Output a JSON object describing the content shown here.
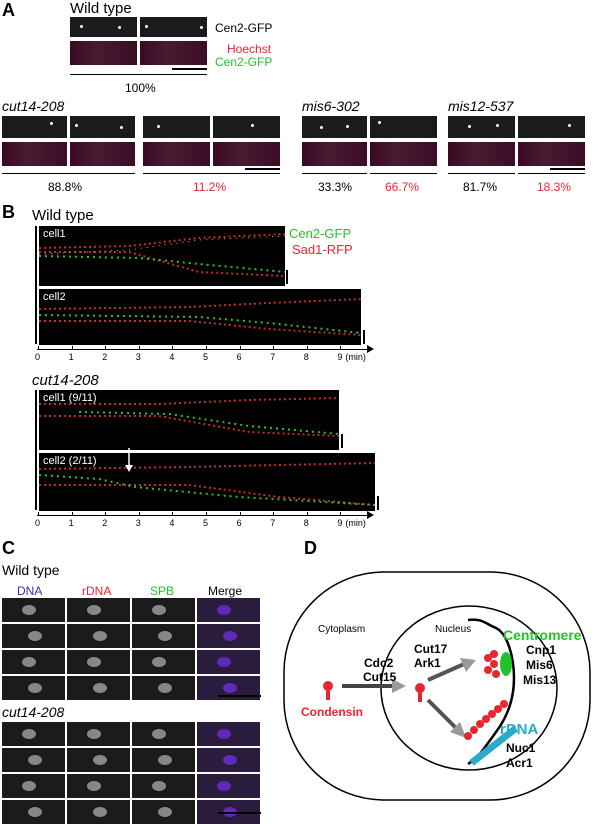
{
  "panelA": {
    "label": "A",
    "wild_type": "Wild type",
    "cen2_gfp": "Cen2-GFP",
    "hoechst": "Hoechst",
    "cen2_gfp2": "Cen2-GFP",
    "wt_pct": "100%",
    "cut14_name": "cut14-208",
    "cut14_pct1": "88.8%",
    "cut14_pct2": "11.2%",
    "mis6_name": "mis6-302",
    "mis6_pct1": "33.3%",
    "mis6_pct2": "66.7%",
    "mis12_name": "mis12-537",
    "mis12_pct1": "81.7%",
    "mis12_pct2": "18.3%"
  },
  "panelB": {
    "label": "B",
    "wild_type": "Wild type",
    "cen2_gfp": "Cen2-GFP",
    "sad1_rfp": "Sad1-RFP",
    "wt_cell1": "cell1",
    "wt_cell2": "cell2",
    "ticks": [
      "0",
      "1",
      "2",
      "3",
      "4",
      "5",
      "6",
      "7",
      "8",
      "9"
    ],
    "unit": "(min)",
    "cut14_name": "cut14-208",
    "cut_cell1": "cell1 (9/11)",
    "cut_cell2": "cell2 (2/11)"
  },
  "panelC": {
    "label": "C",
    "wild_type": "Wild type",
    "col_dna": "DNA",
    "col_rdna": "rDNA",
    "col_spb": "SPB",
    "col_merge": "Merge",
    "cut14_name": "cut14-208"
  },
  "panelD": {
    "label": "D",
    "cytoplasm": "Cytoplasm",
    "nucleus": "Nucleus",
    "centromere": "Centromere",
    "cen_proteins": [
      "Cnp1",
      "Mis6",
      "Mis13"
    ],
    "kinases1": [
      "Cdc2",
      "Cut15"
    ],
    "kinases2": [
      "Cut17",
      "Ark1"
    ],
    "condensin": "Condensin",
    "rdna": "rDNA",
    "rdna_proteins": [
      "Nuc1",
      "Acr1"
    ]
  },
  "colors": {
    "red": "#e8262e",
    "green": "#22c32a",
    "blue": "#2a35b8",
    "cyan": "#2aa9c9"
  }
}
